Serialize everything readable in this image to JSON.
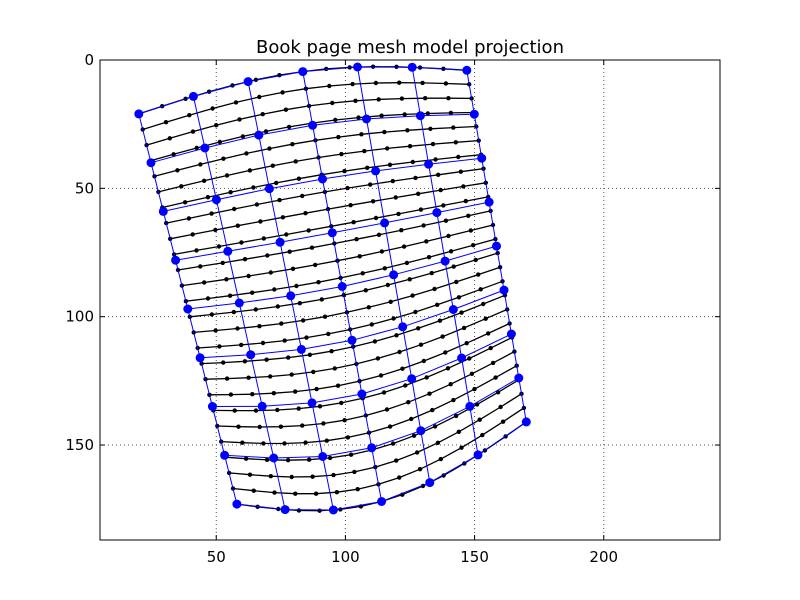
{
  "chart_data": {
    "type": "scatter",
    "title": "Book page mesh model projection",
    "xlabel": "",
    "ylabel": "",
    "xlim": [
      5,
      245
    ],
    "ylim": [
      187,
      0
    ],
    "y_inverted": true,
    "grid": true,
    "xticks": [
      50,
      100,
      150,
      200
    ],
    "yticks": [
      0,
      50,
      100,
      150
    ],
    "colors": {
      "fine_mesh": "#000000",
      "coarse_mesh": "#0000ff",
      "grid": "#555555"
    },
    "mesh_corners": {
      "top_left": [
        20,
        21
      ],
      "top_right": [
        147,
        4
      ],
      "bottom_left": [
        58,
        173
      ],
      "bottom_right": [
        170,
        141
      ]
    },
    "top_edge_sag": 8,
    "bottom_edge_sag": 15,
    "fine_mesh": {
      "rows": 26,
      "cols": 15,
      "point_radius": 2.2
    },
    "coarse_mesh": {
      "rows": 9,
      "cols": 7,
      "point_radius": 4.5
    }
  }
}
